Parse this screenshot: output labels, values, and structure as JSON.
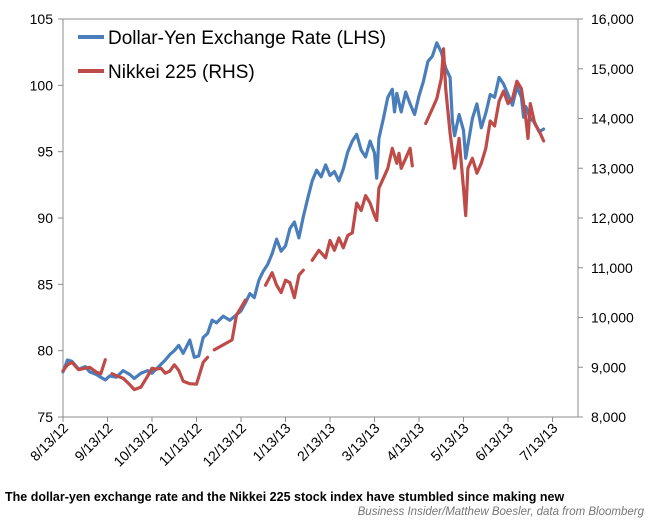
{
  "caption": "The dollar-yen exchange rate and the Nikkei 225 stock index have stumbled since making new",
  "credit": "Business Insider/Matthew Boesler, data from Bloomberg",
  "chart_data": {
    "type": "line",
    "title": "",
    "legend_position": "top-left",
    "x_tick_labels": [
      "8/13/12",
      "9/13/12",
      "10/13/12",
      "11/13/12",
      "12/13/12",
      "1/13/13",
      "2/13/13",
      "3/13/13",
      "4/13/13",
      "5/13/13",
      "6/13/13",
      "7/13/13"
    ],
    "left_axis": {
      "min": 75,
      "max": 105,
      "step": 5,
      "tick_labels": [
        "75",
        "80",
        "85",
        "90",
        "95",
        "100",
        "105"
      ]
    },
    "right_axis": {
      "min": 8000,
      "max": 16000,
      "step": 1000,
      "tick_labels": [
        "8,000",
        "9,000",
        "10,000",
        "11,000",
        "12,000",
        "13,000",
        "14,000",
        "15,000",
        "16,000"
      ]
    },
    "series": [
      {
        "name": "Dollar-Yen Exchange Rate (LHS)",
        "axis": "left",
        "color": "#4a7ebb",
        "points": [
          [
            0,
            78.4
          ],
          [
            0.1,
            79.3
          ],
          [
            0.2,
            79.2
          ],
          [
            0.35,
            78.6
          ],
          [
            0.5,
            78.8
          ],
          [
            0.6,
            78.4
          ],
          [
            0.75,
            78.2
          ],
          [
            0.85,
            78.0
          ],
          [
            0.95,
            77.8
          ],
          [
            1.05,
            78.1
          ],
          [
            1.2,
            78.0
          ],
          [
            1.35,
            78.5
          ],
          [
            1.5,
            78.2
          ],
          [
            1.6,
            77.9
          ],
          [
            1.75,
            78.3
          ],
          [
            1.9,
            78.5
          ],
          [
            2.0,
            78.3
          ],
          [
            2.15,
            78.8
          ],
          [
            2.3,
            79.3
          ],
          [
            2.4,
            79.7
          ],
          [
            2.5,
            80.0
          ],
          [
            2.6,
            80.4
          ],
          [
            2.7,
            79.8
          ],
          [
            2.85,
            80.8
          ],
          [
            2.95,
            79.5
          ],
          [
            3.05,
            79.6
          ],
          [
            3.15,
            81.0
          ],
          [
            3.25,
            81.3
          ],
          [
            3.35,
            82.3
          ],
          [
            3.45,
            82.1
          ],
          [
            3.6,
            82.6
          ],
          [
            3.75,
            82.3
          ],
          [
            3.9,
            82.7
          ],
          [
            4.0,
            83.0
          ],
          [
            4.1,
            83.6
          ],
          [
            4.2,
            84.3
          ],
          [
            4.3,
            84.0
          ],
          [
            4.4,
            85.3
          ],
          [
            4.5,
            86.0
          ],
          [
            4.6,
            86.5
          ],
          [
            4.7,
            87.3
          ],
          [
            4.8,
            88.4
          ],
          [
            4.9,
            87.5
          ],
          [
            5.0,
            87.9
          ],
          [
            5.1,
            89.2
          ],
          [
            5.2,
            89.7
          ],
          [
            5.3,
            88.5
          ],
          [
            5.4,
            90.1
          ],
          [
            5.5,
            91.5
          ],
          [
            5.6,
            92.8
          ],
          [
            5.7,
            93.6
          ],
          [
            5.8,
            93.1
          ],
          [
            5.9,
            94.0
          ],
          [
            6.0,
            93.2
          ],
          [
            6.1,
            93.5
          ],
          [
            6.2,
            92.8
          ],
          [
            6.3,
            93.7
          ],
          [
            6.4,
            95.0
          ],
          [
            6.5,
            95.8
          ],
          [
            6.6,
            96.3
          ],
          [
            6.7,
            95.1
          ],
          [
            6.8,
            94.6
          ],
          [
            6.9,
            95.8
          ],
          [
            7.0,
            94.9
          ],
          [
            7.05,
            93.0
          ],
          [
            7.1,
            96.0
          ],
          [
            7.2,
            97.5
          ],
          [
            7.3,
            99.1
          ],
          [
            7.4,
            99.7
          ],
          [
            7.45,
            98.0
          ],
          [
            7.5,
            99.4
          ],
          [
            7.6,
            98.0
          ],
          [
            7.7,
            99.5
          ],
          [
            7.8,
            98.6
          ],
          [
            7.9,
            97.8
          ],
          [
            8.0,
            99.2
          ],
          [
            8.1,
            100.3
          ],
          [
            8.2,
            101.8
          ],
          [
            8.3,
            102.2
          ],
          [
            8.4,
            103.2
          ],
          [
            8.5,
            102.5
          ],
          [
            8.6,
            101.3
          ],
          [
            8.7,
            100.6
          ],
          [
            8.75,
            97.3
          ],
          [
            8.8,
            96.2
          ],
          [
            8.9,
            97.8
          ],
          [
            9.0,
            96.6
          ],
          [
            9.05,
            94.5
          ],
          [
            9.1,
            95.5
          ],
          [
            9.2,
            97.5
          ],
          [
            9.3,
            98.6
          ],
          [
            9.4,
            96.8
          ],
          [
            9.5,
            97.9
          ],
          [
            9.6,
            99.3
          ],
          [
            9.7,
            99.1
          ],
          [
            9.8,
            100.6
          ],
          [
            9.9,
            100.1
          ],
          [
            10.0,
            99.3
          ],
          [
            10.1,
            98.5
          ],
          [
            10.2,
            99.9
          ],
          [
            10.3,
            99.1
          ],
          [
            10.35,
            97.6
          ],
          [
            10.4,
            98.4
          ],
          [
            10.5,
            97.5
          ],
          [
            10.6,
            97.2
          ],
          [
            10.7,
            96.5
          ],
          [
            10.8,
            96.7
          ]
        ]
      },
      {
        "name": "Nikkei 225 (RHS)",
        "axis": "right",
        "color": "#be4b48",
        "segments": [
          [
            [
              0,
              8930
            ],
            [
              0.1,
              9050
            ],
            [
              0.2,
              9100
            ],
            [
              0.35,
              8950
            ],
            [
              0.5,
              8980
            ],
            [
              0.6,
              9000
            ],
            [
              0.75,
              8900
            ],
            [
              0.85,
              8870
            ],
            [
              0.95,
              9150
            ]
          ],
          [
            [
              1.1,
              8870
            ],
            [
              1.2,
              8830
            ],
            [
              1.35,
              8780
            ],
            [
              1.5,
              8650
            ],
            [
              1.6,
              8550
            ],
            [
              1.75,
              8600
            ],
            [
              1.9,
              8820
            ],
            [
              2.0,
              8980
            ],
            [
              2.1,
              8960
            ],
            [
              2.2,
              8980
            ],
            [
              2.3,
              8880
            ],
            [
              2.4,
              8920
            ],
            [
              2.5,
              9050
            ],
            [
              2.6,
              8940
            ],
            [
              2.7,
              8720
            ],
            [
              2.85,
              8670
            ],
            [
              3.0,
              8660
            ],
            [
              3.15,
              9100
            ],
            [
              3.25,
              9200
            ]
          ],
          [
            [
              3.4,
              9350
            ],
            [
              3.6,
              9450
            ],
            [
              3.8,
              9550
            ],
            [
              3.9,
              10050
            ],
            [
              4.0,
              10200
            ],
            [
              4.1,
              10350
            ]
          ],
          [
            [
              4.55,
              10650
            ],
            [
              4.7,
              10900
            ],
            [
              4.8,
              10650
            ],
            [
              4.9,
              10500
            ],
            [
              5.0,
              10750
            ],
            [
              5.1,
              10700
            ],
            [
              5.2,
              10400
            ],
            [
              5.3,
              10850
            ],
            [
              5.4,
              10950
            ]
          ],
          [
            [
              5.6,
              11150
            ],
            [
              5.75,
              11350
            ],
            [
              5.9,
              11200
            ],
            [
              6.0,
              11550
            ],
            [
              6.1,
              11350
            ],
            [
              6.2,
              11600
            ],
            [
              6.3,
              11400
            ],
            [
              6.4,
              11650
            ],
            [
              6.5,
              11700
            ],
            [
              6.6,
              12300
            ],
            [
              6.7,
              12150
            ],
            [
              6.8,
              12450
            ],
            [
              6.9,
              12300
            ],
            [
              7.0,
              12050
            ],
            [
              7.05,
              11950
            ],
            [
              7.1,
              12600
            ],
            [
              7.2,
              12800
            ],
            [
              7.3,
              13000
            ],
            [
              7.4,
              13400
            ],
            [
              7.5,
              13100
            ],
            [
              7.55,
              13300
            ],
            [
              7.6,
              13000
            ],
            [
              7.7,
              13200
            ],
            [
              7.8,
              13400
            ],
            [
              7.85,
              13050
            ]
          ],
          [
            [
              8.15,
              13900
            ],
            [
              8.3,
              14200
            ],
            [
              8.4,
              14400
            ],
            [
              8.5,
              14800
            ],
            [
              8.55,
              15400
            ],
            [
              8.6,
              14600
            ],
            [
              8.7,
              13700
            ],
            [
              8.8,
              13000
            ],
            [
              8.9,
              13600
            ],
            [
              9.0,
              12600
            ],
            [
              9.05,
              12050
            ],
            [
              9.1,
              13000
            ],
            [
              9.2,
              13200
            ],
            [
              9.3,
              12900
            ],
            [
              9.4,
              13100
            ],
            [
              9.5,
              13400
            ],
            [
              9.6,
              13950
            ],
            [
              9.7,
              13850
            ],
            [
              9.8,
              14350
            ],
            [
              9.9,
              14550
            ],
            [
              10.0,
              14300
            ],
            [
              10.1,
              14400
            ],
            [
              10.2,
              14750
            ],
            [
              10.3,
              14600
            ],
            [
              10.4,
              14000
            ],
            [
              10.45,
              13600
            ],
            [
              10.5,
              14300
            ],
            [
              10.6,
              13900
            ],
            [
              10.7,
              13750
            ],
            [
              10.8,
              13550
            ]
          ]
        ]
      }
    ]
  }
}
